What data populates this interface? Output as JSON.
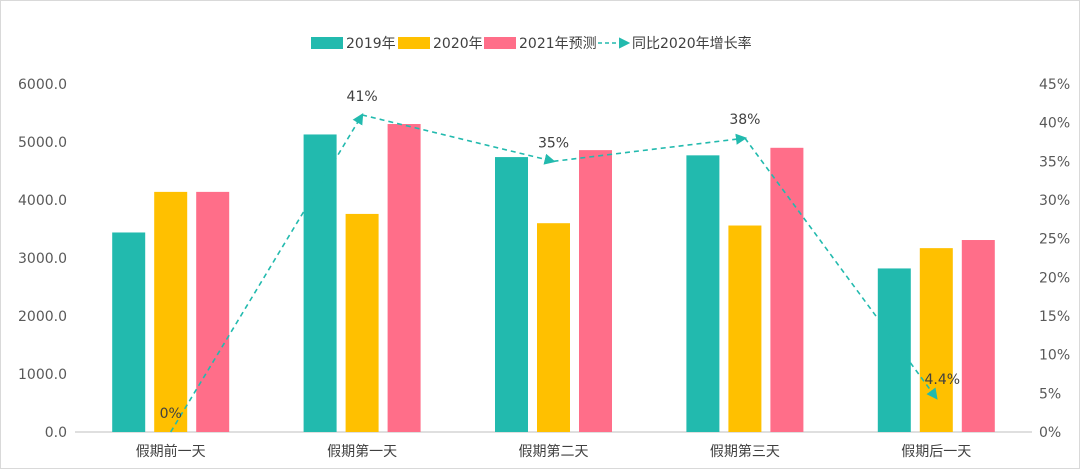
{
  "chart_data": {
    "type": "bar",
    "categories": [
      "假期前一天",
      "假期第一天",
      "假期第二天",
      "假期第三天",
      "假期后一天"
    ],
    "series": [
      {
        "name": "2019年",
        "color": "#22BAAE",
        "values": [
          3440,
          5130,
          4740,
          4770,
          2820
        ]
      },
      {
        "name": "2020年",
        "color": "#FFC000",
        "values": [
          4140,
          3760,
          3600,
          3560,
          3170
        ]
      },
      {
        "name": "2021年预测",
        "color": "#FF6E89",
        "values": [
          4140,
          5310,
          4860,
          4900,
          3310
        ]
      }
    ],
    "line": {
      "name": "同比2020年增长率",
      "color": "#22BAAE",
      "values": [
        0,
        41,
        35,
        38,
        4.4
      ],
      "labels": [
        "0%",
        "41%",
        "35%",
        "38%",
        "4.4%"
      ]
    },
    "ylim": [
      0,
      6000
    ],
    "y_ticks": [
      "0.0",
      "1000.0",
      "2000.0",
      "3000.0",
      "4000.0",
      "5000.0",
      "6000.0"
    ],
    "y2lim": [
      0,
      45
    ],
    "y2_ticks": [
      "0%",
      "5%",
      "10%",
      "15%",
      "20%",
      "25%",
      "30%",
      "35%",
      "40%",
      "45%"
    ],
    "legend_position": "top-center",
    "grid": false
  }
}
